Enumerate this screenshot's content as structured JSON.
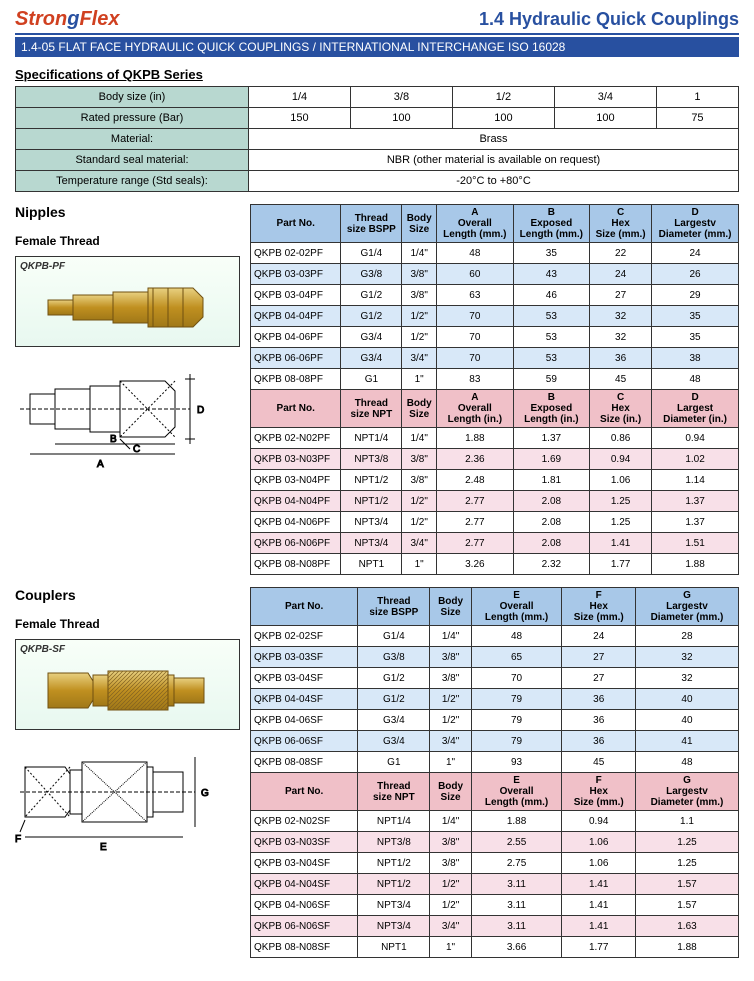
{
  "header": {
    "logo_p1": "Stron",
    "logo_p2": "g",
    "logo_p3": "Flex",
    "title": "1.4 Hydraulic Quick Couplings",
    "subtitle": "1.4-05  FLAT FACE HYDRAULIC QUICK COUPLINGS / INTERNATIONAL INTERCHANGE ISO 16028"
  },
  "spec": {
    "title": "Specifications of QKPB Series",
    "rows": [
      {
        "label": "Body size (in)",
        "cells": [
          "1/4",
          "3/8",
          "1/2",
          "3/4",
          "1"
        ]
      },
      {
        "label": "Rated pressure (Bar)",
        "cells": [
          "150",
          "100",
          "100",
          "100",
          "75"
        ]
      },
      {
        "label": "Material:",
        "merged": "Brass"
      },
      {
        "label": "Standard seal material:",
        "merged": "NBR (other material is available on request)"
      },
      {
        "label": "Temperature range (Std seals):",
        "merged": "-20°C to +80°C"
      }
    ]
  },
  "nipples": {
    "section": "Nipples",
    "sub": "Female Thread",
    "imglabel": "QKPB-PF",
    "hdr1": [
      "Part No.",
      "Thread size BSPP",
      "Body Size",
      "A Overall Length (mm.)",
      "B Exposed Length (mm.)",
      "C Hex Size (mm.)",
      "D Largestv Diameter (mm.)"
    ],
    "rows1": [
      [
        "QKPB 02-02PF",
        "G1/4",
        "1/4\"",
        "48",
        "35",
        "22",
        "24"
      ],
      [
        "QKPB 03-03PF",
        "G3/8",
        "3/8\"",
        "60",
        "43",
        "24",
        "26"
      ],
      [
        "QKPB 03-04PF",
        "G1/2",
        "3/8\"",
        "63",
        "46",
        "27",
        "29"
      ],
      [
        "QKPB 04-04PF",
        "G1/2",
        "1/2\"",
        "70",
        "53",
        "32",
        "35"
      ],
      [
        "QKPB 04-06PF",
        "G3/4",
        "1/2\"",
        "70",
        "53",
        "32",
        "35"
      ],
      [
        "QKPB 06-06PF",
        "G3/4",
        "3/4\"",
        "70",
        "53",
        "36",
        "38"
      ],
      [
        "QKPB 08-08PF",
        "G1",
        "1\"",
        "83",
        "59",
        "45",
        "48"
      ]
    ],
    "hdr2": [
      "Part No.",
      "Thread size NPT",
      "Body Size",
      "A Overall Length (in.)",
      "B Exposed Length (in.)",
      "C Hex Size (in.)",
      "D Largest Diameter (in.)"
    ],
    "rows2": [
      [
        "QKPB 02-N02PF",
        "NPT1/4",
        "1/4\"",
        "1.88",
        "1.37",
        "0.86",
        "0.94"
      ],
      [
        "QKPB 03-N03PF",
        "NPT3/8",
        "3/8\"",
        "2.36",
        "1.69",
        "0.94",
        "1.02"
      ],
      [
        "QKPB 03-N04PF",
        "NPT1/2",
        "3/8\"",
        "2.48",
        "1.81",
        "1.06",
        "1.14"
      ],
      [
        "QKPB 04-N04PF",
        "NPT1/2",
        "1/2\"",
        "2.77",
        "2.08",
        "1.25",
        "1.37"
      ],
      [
        "QKPB 04-N06PF",
        "NPT3/4",
        "1/2\"",
        "2.77",
        "2.08",
        "1.25",
        "1.37"
      ],
      [
        "QKPB 06-N06PF",
        "NPT3/4",
        "3/4\"",
        "2.77",
        "2.08",
        "1.41",
        "1.51"
      ],
      [
        "QKPB 08-N08PF",
        "NPT1",
        "1\"",
        "3.26",
        "2.32",
        "1.77",
        "1.88"
      ]
    ]
  },
  "couplers": {
    "section": "Couplers",
    "sub": "Female Thread",
    "imglabel": "QKPB-SF",
    "hdr1": [
      "Part No.",
      "Thread size BSPP",
      "Body Size",
      "E Overall Length (mm.)",
      "F Hex Size (mm.)",
      "G Largestv Diameter (mm.)"
    ],
    "rows1": [
      [
        "QKPB 02-02SF",
        "G1/4",
        "1/4\"",
        "48",
        "24",
        "28"
      ],
      [
        "QKPB 03-03SF",
        "G3/8",
        "3/8\"",
        "65",
        "27",
        "32"
      ],
      [
        "QKPB 03-04SF",
        "G1/2",
        "3/8\"",
        "70",
        "27",
        "32"
      ],
      [
        "QKPB 04-04SF",
        "G1/2",
        "1/2\"",
        "79",
        "36",
        "40"
      ],
      [
        "QKPB 04-06SF",
        "G3/4",
        "1/2\"",
        "79",
        "36",
        "40"
      ],
      [
        "QKPB 06-06SF",
        "G3/4",
        "3/4\"",
        "79",
        "36",
        "41"
      ],
      [
        "QKPB 08-08SF",
        "G1",
        "1\"",
        "93",
        "45",
        "48"
      ]
    ],
    "hdr2": [
      "Part No.",
      "Thread size NPT",
      "Body Size",
      "E Overall Length (mm.)",
      "F Hex Size (mm.)",
      "G Largestv Diameter (mm.)"
    ],
    "rows2": [
      [
        "QKPB 02-N02SF",
        "NPT1/4",
        "1/4\"",
        "1.88",
        "0.94",
        "1.1"
      ],
      [
        "QKPB 03-N03SF",
        "NPT3/8",
        "3/8\"",
        "2.55",
        "1.06",
        "1.25"
      ],
      [
        "QKPB 03-N04SF",
        "NPT1/2",
        "3/8\"",
        "2.75",
        "1.06",
        "1.25"
      ],
      [
        "QKPB 04-N04SF",
        "NPT1/2",
        "1/2\"",
        "3.11",
        "1.41",
        "1.57"
      ],
      [
        "QKPB 04-N06SF",
        "NPT3/4",
        "1/2\"",
        "3.11",
        "1.41",
        "1.57"
      ],
      [
        "QKPB 06-N06SF",
        "NPT3/4",
        "3/4\"",
        "3.11",
        "1.41",
        "1.63"
      ],
      [
        "QKPB 08-N08SF",
        "NPT1",
        "1\"",
        "3.66",
        "1.77",
        "1.88"
      ]
    ]
  },
  "colors": {
    "blue": "#2850a0",
    "red": "#d04020",
    "hdr_blue": "#a8c8e8",
    "hdr_pink": "#f0c0c8",
    "alt_blue": "#d8e8f8",
    "alt_pink": "#f8e0e8",
    "spec_green": "#b8d8d0",
    "brass": "#c8a038"
  },
  "diagram_labels": {
    "A": "A",
    "B": "B",
    "C": "C",
    "D": "D",
    "E": "E",
    "F": "F",
    "G": "G"
  }
}
